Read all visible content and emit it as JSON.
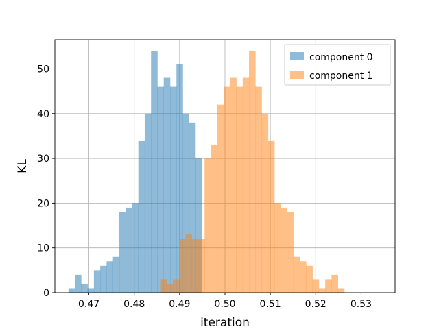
{
  "chart_data": {
    "type": "histogram",
    "title": "",
    "xlabel": "iteration",
    "ylabel": "KL",
    "xlim": [
      0.4625,
      0.5375
    ],
    "ylim": [
      0,
      56.5
    ],
    "xticks": [
      0.47,
      0.48,
      0.49,
      0.5,
      0.51,
      0.52,
      0.53
    ],
    "xtick_labels": [
      "0.47",
      "0.48",
      "0.49",
      "0.50",
      "0.51",
      "0.52",
      "0.53"
    ],
    "yticks": [
      0,
      10,
      20,
      30,
      40,
      50
    ],
    "ytick_labels": [
      "0",
      "10",
      "20",
      "30",
      "40",
      "50"
    ],
    "grid": true,
    "legend_position": "upper-right",
    "series": [
      {
        "name": "component 0",
        "color": "#1f77b4",
        "alpha": 0.5,
        "bin_start": 0.4655,
        "bin_width": 0.0014,
        "counts": [
          1,
          4,
          2,
          1,
          5,
          6,
          7,
          8,
          18,
          19,
          20,
          34,
          40,
          54,
          46,
          48,
          46,
          51,
          40,
          38,
          30
        ]
      },
      {
        "name": "component 1",
        "color": "#ff7f0e",
        "alpha": 0.5,
        "bin_start": 0.4661,
        "bin_width": 0.0014,
        "counts": [
          0,
          0,
          0,
          0,
          0,
          0,
          0,
          0,
          0,
          0,
          0,
          0,
          0,
          0,
          3,
          2,
          3,
          12,
          13,
          12,
          12,
          30,
          33,
          42,
          46,
          48,
          46,
          48,
          54,
          46,
          40,
          34,
          20,
          19,
          18,
          8,
          7,
          6,
          3,
          1,
          3,
          4,
          1
        ]
      }
    ]
  }
}
